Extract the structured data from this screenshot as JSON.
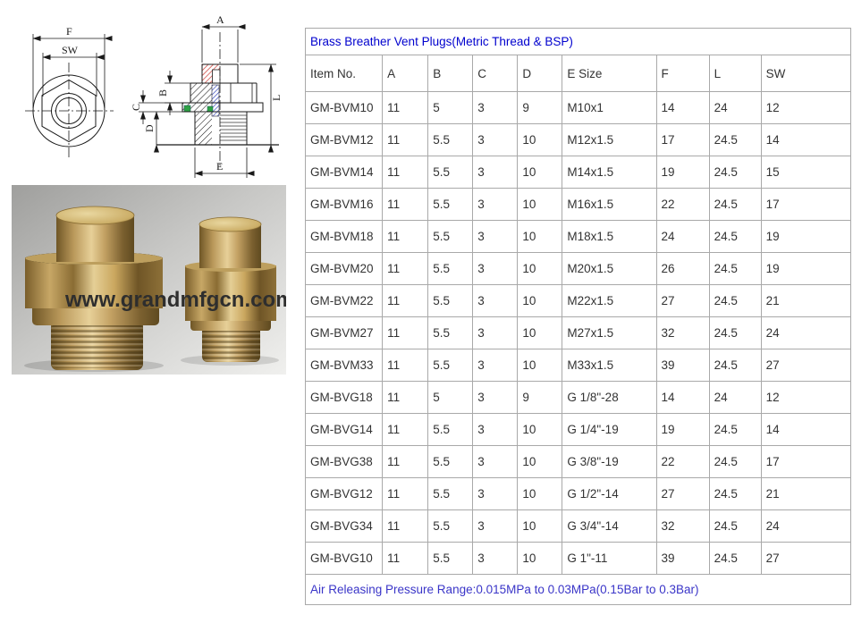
{
  "diagram": {
    "labels": {
      "f": "F",
      "sw": "SW",
      "a": "A",
      "b": "B",
      "c": "C",
      "d": "D",
      "e": "E",
      "l": "L"
    }
  },
  "photo": {
    "watermark": "www.grandmfgcn.com"
  },
  "table": {
    "title": "Brass Breather Vent Plugs(Metric Thread & BSP)",
    "columns": [
      "Item No.",
      "A",
      "B",
      "C",
      "D",
      "E Size",
      "F",
      "L",
      "SW"
    ],
    "rows": [
      [
        "GM-BVM10",
        "11",
        "5",
        "3",
        "9",
        "M10x1",
        "14",
        "24",
        "12"
      ],
      [
        "GM-BVM12",
        "11",
        "5.5",
        "3",
        "10",
        "M12x1.5",
        "17",
        "24.5",
        "14"
      ],
      [
        "GM-BVM14",
        "11",
        "5.5",
        "3",
        "10",
        "M14x1.5",
        "19",
        "24.5",
        "15"
      ],
      [
        "GM-BVM16",
        "11",
        "5.5",
        "3",
        "10",
        "M16x1.5",
        "22",
        "24.5",
        "17"
      ],
      [
        "GM-BVM18",
        "11",
        "5.5",
        "3",
        "10",
        "M18x1.5",
        "24",
        "24.5",
        "19"
      ],
      [
        "GM-BVM20",
        "11",
        "5.5",
        "3",
        "10",
        "M20x1.5",
        "26",
        "24.5",
        "19"
      ],
      [
        "GM-BVM22",
        "11",
        "5.5",
        "3",
        "10",
        "M22x1.5",
        "27",
        "24.5",
        "21"
      ],
      [
        "GM-BVM27",
        "11",
        "5.5",
        "3",
        "10",
        "M27x1.5",
        "32",
        "24.5",
        "24"
      ],
      [
        "GM-BVM33",
        "11",
        "5.5",
        "3",
        "10",
        "M33x1.5",
        "39",
        "24.5",
        "27"
      ],
      [
        "GM-BVG18",
        "11",
        "5",
        "3",
        "9",
        "G 1/8\"-28",
        "14",
        "24",
        "12"
      ],
      [
        "GM-BVG14",
        "11",
        "5.5",
        "3",
        "10",
        "G 1/4\"-19",
        "19",
        "24.5",
        "14"
      ],
      [
        "GM-BVG38",
        "11",
        "5.5",
        "3",
        "10",
        "G 3/8\"-19",
        "22",
        "24.5",
        "17"
      ],
      [
        "GM-BVG12",
        "11",
        "5.5",
        "3",
        "10",
        "G 1/2\"-14",
        "27",
        "24.5",
        "21"
      ],
      [
        "GM-BVG34",
        "11",
        "5.5",
        "3",
        "10",
        "G 3/4\"-14",
        "32",
        "24.5",
        "24"
      ],
      [
        "GM-BVG10",
        "11",
        "5.5",
        "3",
        "10",
        "G  1\"-11",
        "39",
        "24.5",
        "27"
      ]
    ],
    "footer": "Air Releasing Pressure Range:0.015MPa to 0.03MPa(0.15Bar to 0.3Bar)"
  },
  "colors": {
    "title_blue": "#0101ce",
    "footer_blue": "#3a35c8",
    "border_gray": "#a9a9a9",
    "hatch_red": "#cc3b33",
    "hatch_blue": "#3344bb",
    "oring_green": "#2fa244",
    "brass": "#bd9a52"
  }
}
